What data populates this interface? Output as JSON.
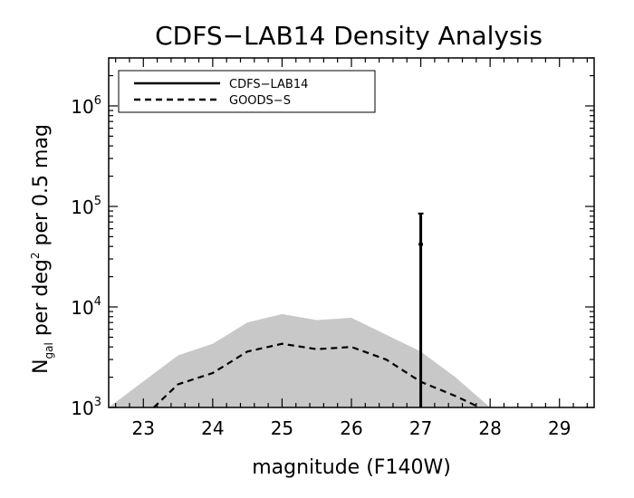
{
  "chart_data": {
    "type": "line",
    "title": "CDFS−LAB14 Density Analysis",
    "xlabel": "magnitude (F140W)",
    "ylabel": {
      "prefix": "N",
      "subscript": "gal",
      "middle": " per deg",
      "superscript": "2",
      "suffix": " per 0.5 mag"
    },
    "xlim": [
      22.5,
      29.5
    ],
    "ylim": [
      1000,
      3000000
    ],
    "yscale": "log",
    "grid": false,
    "legend_position": "top-left",
    "x_ticks": [
      {
        "value": 23,
        "label": "23"
      },
      {
        "value": 24,
        "label": "24"
      },
      {
        "value": 25,
        "label": "25"
      },
      {
        "value": 26,
        "label": "26"
      },
      {
        "value": 27,
        "label": "27"
      },
      {
        "value": 28,
        "label": "28"
      },
      {
        "value": 29,
        "label": "29"
      }
    ],
    "x_minor_step": 0.2,
    "y_ticks": [
      {
        "value": 1000,
        "base": "10",
        "exp": "3"
      },
      {
        "value": 10000,
        "base": "10",
        "exp": "4"
      },
      {
        "value": 100000,
        "base": "10",
        "exp": "5"
      },
      {
        "value": 1000000,
        "base": "10",
        "exp": "6"
      }
    ],
    "legend": [
      {
        "label": "CDFS−LAB14",
        "style": "solid"
      },
      {
        "label": "GOODS−S",
        "style": "dashed"
      }
    ],
    "band": {
      "color": "#c8c8c8",
      "x": [
        22.5,
        23.5,
        24.0,
        24.5,
        25.0,
        25.5,
        26.0,
        26.5,
        27.0,
        27.5,
        28.0
      ],
      "upper": [
        1000,
        3300,
        4300,
        7000,
        8500,
        7400,
        7800,
        5300,
        3600,
        2000,
        1000
      ]
    },
    "series": [
      {
        "style": "dashed",
        "x": [
          23.15,
          23.5,
          24.0,
          24.5,
          25.0,
          25.5,
          26.0,
          26.5,
          27.0,
          27.5,
          27.85
        ],
        "y": [
          1000,
          1700,
          2200,
          3600,
          4300,
          3800,
          4000,
          3000,
          1800,
          1300,
          1000
        ]
      },
      {
        "style": "solid",
        "points": [
          {
            "x": 27.0,
            "y": 42000,
            "err_low": 1000,
            "err_high": 85000
          }
        ]
      }
    ]
  }
}
